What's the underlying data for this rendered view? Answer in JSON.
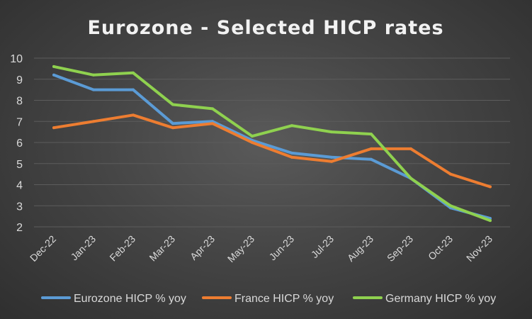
{
  "chart_data": {
    "type": "line",
    "title": "Eurozone - Selected HICP rates",
    "xlabel": "",
    "ylabel": "",
    "ylim": [
      2,
      10
    ],
    "yticks": [
      "2",
      "3",
      "4",
      "5",
      "6",
      "7",
      "8",
      "9",
      "10"
    ],
    "grid": true,
    "legend_position": "bottom",
    "categories": [
      "Dec-22",
      "Jan-23",
      "Feb-23",
      "Mar-23",
      "Apr-23",
      "May-23",
      "Jun-23",
      "Jul-23",
      "Aug-23",
      "Sep-23",
      "Oct-23",
      "Nov-23"
    ],
    "series": [
      {
        "name": "Eurozone HICP % yoy",
        "color": "#5b9bd5",
        "values": [
          9.2,
          8.5,
          8.5,
          6.9,
          7.0,
          6.1,
          5.5,
          5.3,
          5.2,
          4.3,
          2.9,
          2.4
        ]
      },
      {
        "name": "France HICP % yoy",
        "color": "#ed7d31",
        "values": [
          6.7,
          7.0,
          7.3,
          6.7,
          6.9,
          6.0,
          5.3,
          5.1,
          5.7,
          5.7,
          4.5,
          3.9
        ]
      },
      {
        "name": "Germany HICP % yoy",
        "color": "#8fd14f",
        "values": [
          9.6,
          9.2,
          9.3,
          7.8,
          7.6,
          6.3,
          6.8,
          6.5,
          6.4,
          4.3,
          3.0,
          2.3
        ]
      }
    ]
  }
}
